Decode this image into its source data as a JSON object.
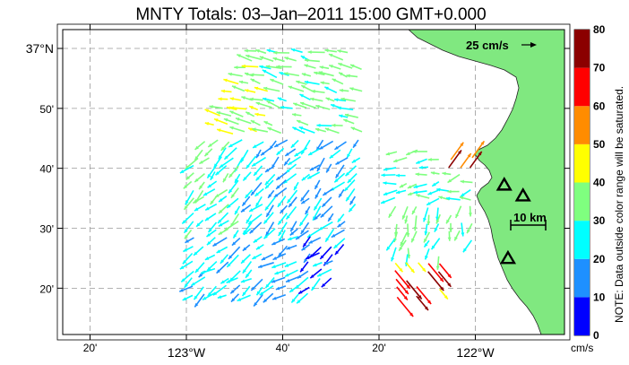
{
  "title": "MNTY Totals: 03–Jan–2011 15:00 GMT+0.000",
  "lat_labels": [
    {
      "text": "37°N",
      "lat": 37.0,
      "main": true
    },
    {
      "text": "50'",
      "lat": 36.8333,
      "main": false
    },
    {
      "text": "40'",
      "lat": 36.6667,
      "main": false
    },
    {
      "text": "30'",
      "lat": 36.5,
      "main": false
    },
    {
      "text": "20'",
      "lat": 36.3333,
      "main": false
    }
  ],
  "lon_labels": [
    {
      "text": "20'",
      "lon": -123.3333,
      "main": false
    },
    {
      "text": "123°W",
      "lon": -123.0,
      "main": true
    },
    {
      "text": "40'",
      "lon": -122.6667,
      "main": false
    },
    {
      "text": "20'",
      "lon": -122.3333,
      "main": false
    },
    {
      "text": "122°W",
      "lon": -122.0,
      "main": true
    }
  ],
  "reference_vector": {
    "label": "25 cm/s",
    "speed_cms": 25
  },
  "scale_bar": {
    "label": "10 km",
    "km": 10
  },
  "colorbar": {
    "ticks": [
      "0",
      "10",
      "20",
      "30",
      "40",
      "50",
      "60",
      "70",
      "80"
    ],
    "colors": [
      "#0000ff",
      "#1e90ff",
      "#00ffff",
      "#7fff7f",
      "#ffff00",
      "#ff8c00",
      "#ff0000",
      "#8b0000"
    ],
    "unit": "cm/s",
    "note": "NOTE: Data outside color range will be saturated."
  },
  "land_color": "#80e880",
  "radar_sites": [
    {
      "lon": -121.9,
      "lat": 36.62
    },
    {
      "lon": -121.835,
      "lat": 36.59
    },
    {
      "lon": -121.887,
      "lat": 36.416
    }
  ]
}
